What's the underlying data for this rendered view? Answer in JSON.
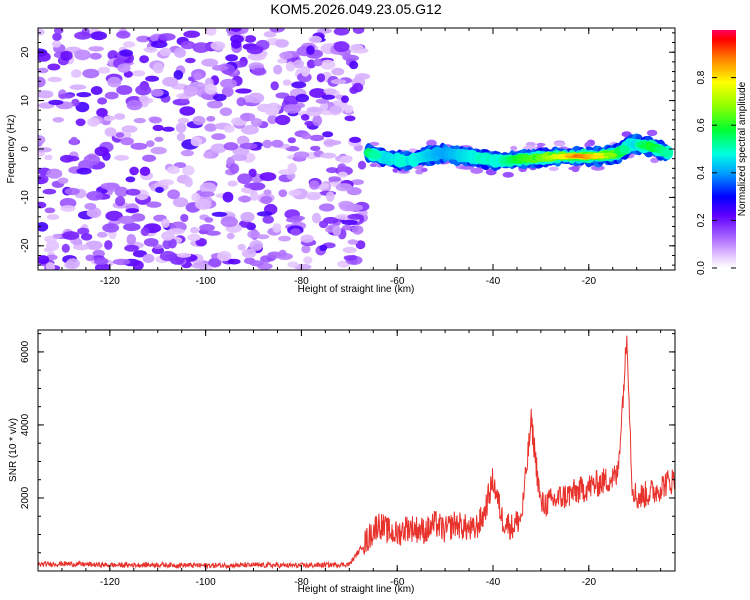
{
  "title": "KOM5.2026.049.23.05.G12",
  "chart_data": [
    {
      "type": "heatmap",
      "name": "spectrogram",
      "xlabel": "Height of straight line (km)",
      "ylabel": "Frequency (Hz)",
      "xlim": [
        -135,
        -2
      ],
      "ylim": [
        -25,
        25
      ],
      "xticks": [
        -120,
        -100,
        -80,
        -60,
        -40,
        -20
      ],
      "yticks": [
        -20,
        -10,
        0,
        10,
        20
      ],
      "noise_region": {
        "x_from": -135,
        "x_to": -67,
        "freq_from": -25,
        "freq_to": 25,
        "amplitude_range": [
          0.05,
          0.25
        ]
      },
      "signal_track": {
        "points": [
          {
            "x": -66,
            "freq": -0.8,
            "amp": 0.55
          },
          {
            "x": -62,
            "freq": -2.0,
            "amp": 0.45
          },
          {
            "x": -58,
            "freq": -2.5,
            "amp": 0.5
          },
          {
            "x": -54,
            "freq": -1.5,
            "amp": 0.45
          },
          {
            "x": -50,
            "freq": -0.8,
            "amp": 0.4
          },
          {
            "x": -46,
            "freq": -1.5,
            "amp": 0.45
          },
          {
            "x": -42,
            "freq": -2.0,
            "amp": 0.5
          },
          {
            "x": -38,
            "freq": -2.5,
            "amp": 0.5
          },
          {
            "x": -34,
            "freq": -2.0,
            "amp": 0.6
          },
          {
            "x": -30,
            "freq": -1.8,
            "amp": 0.65
          },
          {
            "x": -26,
            "freq": -1.5,
            "amp": 0.75
          },
          {
            "x": -22,
            "freq": -1.5,
            "amp": 0.9
          },
          {
            "x": -18,
            "freq": -1.5,
            "amp": 0.8
          },
          {
            "x": -14,
            "freq": -1.0,
            "amp": 0.6
          },
          {
            "x": -11,
            "freq": 1.0,
            "amp": 0.45
          },
          {
            "x": -7,
            "freq": 0.5,
            "amp": 0.6
          },
          {
            "x": -3,
            "freq": -1.0,
            "amp": 0.5
          }
        ]
      },
      "colorbar": {
        "label": "Normalized spectral amplitude",
        "range": [
          0,
          1
        ],
        "ticks": [
          "0.0",
          "0.2",
          "0.4",
          "0.6",
          "0.8"
        ],
        "tick_values": [
          0.0,
          0.2,
          0.4,
          0.6,
          0.8
        ]
      }
    },
    {
      "type": "line",
      "name": "snr",
      "xlabel": "Height of straight line (km)",
      "ylabel": "SNR (10 * v/v)",
      "xlim": [
        -135,
        -2
      ],
      "ylim": [
        0,
        6600
      ],
      "xticks": [
        -120,
        -100,
        -80,
        -60,
        -40,
        -20
      ],
      "yticks": [
        2000,
        4000,
        6000
      ],
      "color": "#e8322c",
      "series": [
        {
          "name": "SNR",
          "x": [
            -135,
            -130,
            -120,
            -110,
            -100,
            -90,
            -80,
            -70,
            -66,
            -64,
            -62,
            -60,
            -58,
            -56,
            -54,
            -52,
            -50,
            -48,
            -46,
            -44,
            -42,
            -40,
            -38,
            -36,
            -34,
            -32,
            -30,
            -28,
            -26,
            -24,
            -22,
            -20,
            -18,
            -16,
            -14,
            -13,
            -12,
            -11,
            -10,
            -8,
            -6,
            -4,
            -2
          ],
          "y": [
            180,
            200,
            160,
            170,
            150,
            160,
            150,
            180,
            900,
            1300,
            1100,
            1000,
            1200,
            1150,
            1100,
            1300,
            1100,
            1300,
            1200,
            1100,
            1500,
            2500,
            1400,
            1200,
            1500,
            4100,
            1800,
            1900,
            2000,
            2100,
            2200,
            2300,
            2400,
            2500,
            2600,
            4500,
            6500,
            2400,
            2000,
            2100,
            2200,
            2400,
            2500
          ]
        }
      ]
    }
  ]
}
